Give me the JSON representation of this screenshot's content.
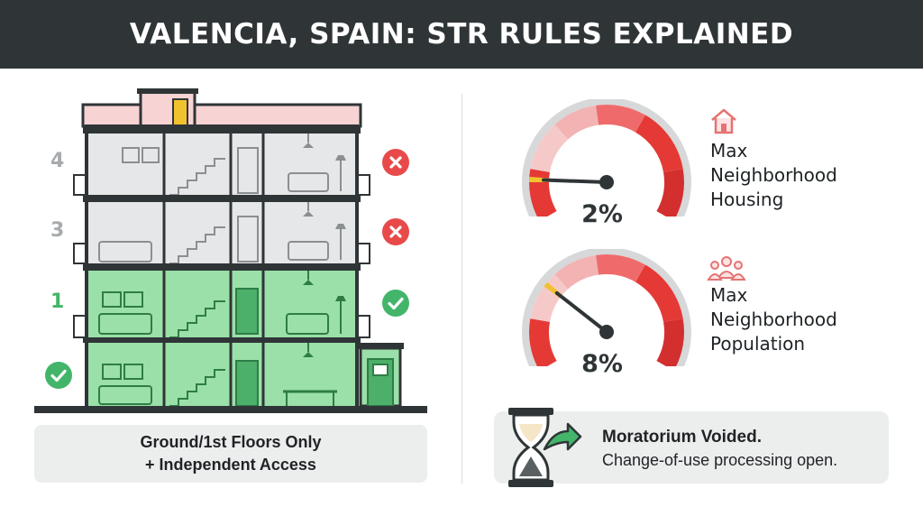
{
  "header": {
    "title": "VALENCIA, SPAIN: STR RULES EXPLAINED"
  },
  "building": {
    "floors": [
      {
        "label": "4",
        "allowed": false,
        "status_icon": "x-circle-icon"
      },
      {
        "label": "3",
        "allowed": false,
        "status_icon": "x-circle-icon"
      },
      {
        "label": "1",
        "allowed": true,
        "status_icon": "check-circle-icon"
      },
      {
        "label": "",
        "allowed": true,
        "status_icon": "check-circle-icon"
      }
    ],
    "caption_line1": "Ground/1st Floors Only",
    "caption_line2": "+ Independent Access"
  },
  "metrics": [
    {
      "value": "2%",
      "percent": 2,
      "label_lines": [
        "Max",
        "Neighborhood",
        "Housing"
      ],
      "icon": "house-icon"
    },
    {
      "value": "8%",
      "percent": 8,
      "label_lines": [
        "Max",
        "Neighborhood",
        "Population"
      ],
      "icon": "people-group-icon"
    }
  ],
  "status": {
    "title": "Moratorium Voided.",
    "subtitle": "Change-of-use processing open.",
    "icon": "hourglass-arrow-icon"
  },
  "colors": {
    "header_bg": "#2f3537",
    "allowed_green": "#43b56a",
    "denied_red": "#e84a4a",
    "gauge_red": "#e53935",
    "gauge_pink": "#f6c9c9"
  }
}
